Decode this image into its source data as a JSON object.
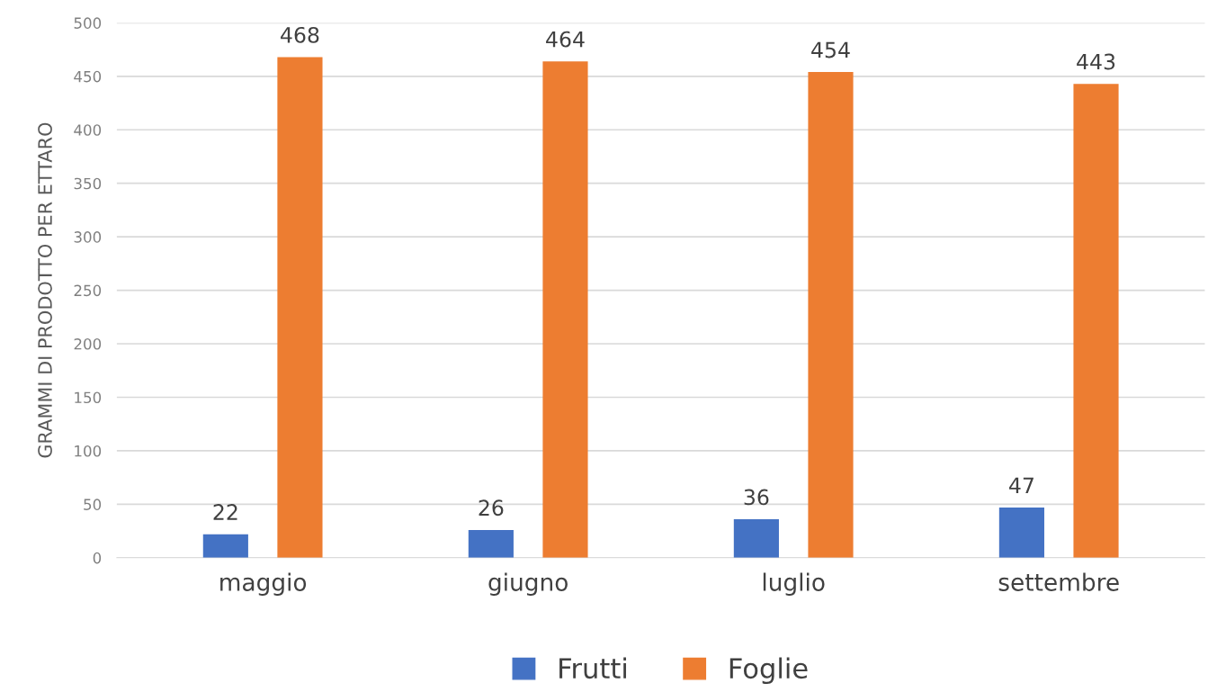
{
  "chart_data": {
    "type": "bar",
    "ylabel": "GRAMMI DI PRODOTTO PER ETTARO",
    "categories": [
      "maggio",
      "giugno",
      "luglio",
      "settembre"
    ],
    "series": [
      {
        "name": "Frutti",
        "color": "#4472c4",
        "values": [
          22,
          26,
          36,
          47
        ]
      },
      {
        "name": "Foglie",
        "color": "#ed7d31",
        "values": [
          468,
          464,
          454,
          443
        ]
      }
    ],
    "ylim": [
      0,
      500
    ],
    "yticks": [
      0,
      50,
      100,
      150,
      200,
      250,
      300,
      350,
      400,
      450,
      500
    ],
    "grid": "y",
    "legend": "bottom",
    "data_labels": true
  }
}
